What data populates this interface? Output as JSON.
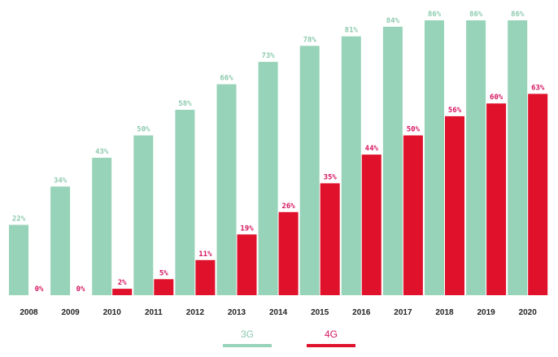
{
  "chart_data": {
    "type": "bar",
    "categories": [
      "2008",
      "2009",
      "2010",
      "2011",
      "2012",
      "2013",
      "2014",
      "2015",
      "2016",
      "2017",
      "2018",
      "2019",
      "2020"
    ],
    "series": [
      {
        "name": "3G",
        "values": [
          22,
          34,
          43,
          50,
          58,
          66,
          73,
          78,
          81,
          84,
          86,
          86,
          86
        ],
        "labels": [
          "22%",
          "34%",
          "43%",
          "50%",
          "58%",
          "66%",
          "73%",
          "78%",
          "81%",
          "84%",
          "86%",
          "86%",
          "86%"
        ]
      },
      {
        "name": "4G",
        "values": [
          0,
          0,
          2,
          5,
          11,
          19,
          26,
          35,
          44,
          50,
          56,
          60,
          63
        ],
        "labels": [
          "0%",
          "0%",
          "2%",
          "5%",
          "11%",
          "19%",
          "26%",
          "35%",
          "44%",
          "50%",
          "56%",
          "60%",
          "63%"
        ]
      }
    ],
    "ylim": [
      0,
      86
    ],
    "grid": false,
    "legend_position": "bottom-center",
    "title": "",
    "xlabel": "",
    "ylabel": ""
  },
  "legend": [
    {
      "label": "3G",
      "color": "#97d3b8"
    },
    {
      "label": "4G",
      "color": "#e0112b"
    }
  ],
  "colors": {
    "3G_bar": "#97d3b8",
    "3G_label": "#8ccaae",
    "4G_bar": "#e0112b",
    "4G_label": "#d6145f"
  }
}
